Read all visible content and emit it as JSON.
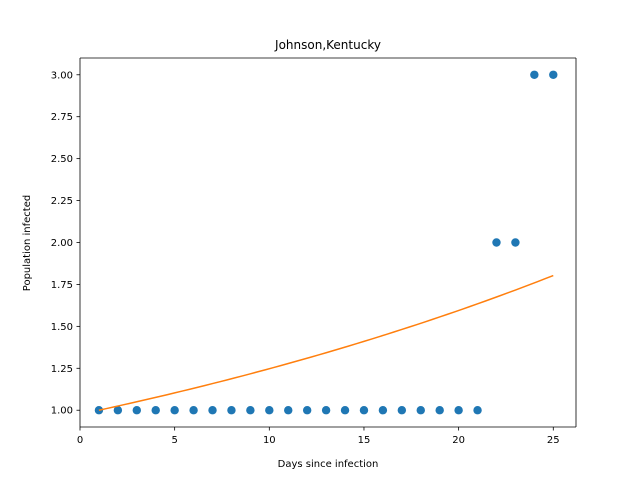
{
  "chart_data": {
    "type": "scatter",
    "title": "Johnson,Kentucky",
    "xlabel": "Days since infection",
    "ylabel": "Population infected",
    "xlim": [
      0,
      26.2
    ],
    "ylim": [
      0.9,
      3.1
    ],
    "xticks": [
      0,
      5,
      10,
      15,
      20,
      25
    ],
    "xtick_labels": [
      "0",
      "5",
      "10",
      "15",
      "20",
      "25"
    ],
    "yticks": [
      1.0,
      1.25,
      1.5,
      1.75,
      2.0,
      2.25,
      2.5,
      2.75,
      3.0
    ],
    "ytick_labels": [
      "1.00",
      "1.25",
      "1.50",
      "1.75",
      "2.00",
      "2.25",
      "2.50",
      "2.75",
      "3.00"
    ],
    "grid": false,
    "series": [
      {
        "kind": "scatter",
        "color": "#1f77b4",
        "x": [
          1,
          2,
          3,
          4,
          5,
          6,
          7,
          8,
          9,
          10,
          11,
          12,
          13,
          14,
          15,
          16,
          17,
          18,
          19,
          20,
          21,
          22,
          23,
          24,
          25
        ],
        "y": [
          1,
          1,
          1,
          1,
          1,
          1,
          1,
          1,
          1,
          1,
          1,
          1,
          1,
          1,
          1,
          1,
          1,
          1,
          1,
          1,
          1,
          2,
          2,
          3,
          3
        ]
      },
      {
        "kind": "line",
        "color": "#ff7f0e",
        "x": [
          1,
          25
        ],
        "curve": {
          "a": 0.9758,
          "b": 0.02456
        }
      }
    ]
  }
}
